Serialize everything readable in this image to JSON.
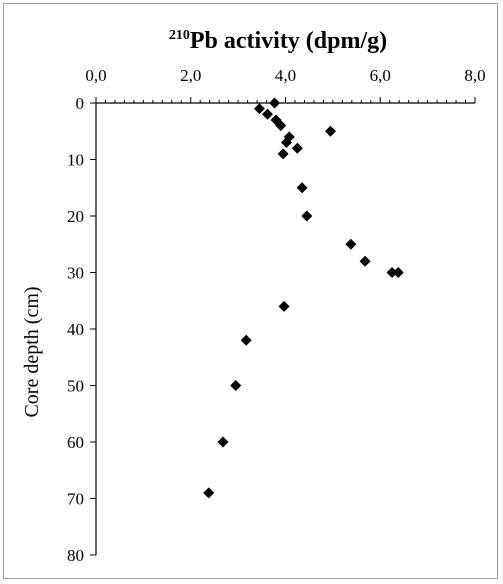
{
  "chart_data": {
    "type": "scatter",
    "title_sup": "210",
    "title_main": "Pb activity (dpm/g)",
    "xlabel": "210Pb activity (dpm/g)",
    "ylabel": "Core depth (cm)",
    "x_ticks": [
      "0,0",
      "2,0",
      "4,0",
      "6,0",
      "8,0"
    ],
    "y_ticks": [
      "0",
      "10",
      "20",
      "30",
      "40",
      "50",
      "60",
      "70",
      "80"
    ],
    "xlim": [
      0,
      8
    ],
    "ylim": [
      0,
      80
    ],
    "x_axis_position": "top",
    "y_axis_inverted": true,
    "grid": false,
    "legend": "none",
    "marker": "diamond",
    "marker_color": "#000000",
    "points": [
      {
        "x": 3.77,
        "y": 0
      },
      {
        "x": 3.45,
        "y": 1
      },
      {
        "x": 3.62,
        "y": 2
      },
      {
        "x": 3.8,
        "y": 3
      },
      {
        "x": 3.9,
        "y": 4
      },
      {
        "x": 4.95,
        "y": 5
      },
      {
        "x": 4.08,
        "y": 6
      },
      {
        "x": 4.02,
        "y": 7
      },
      {
        "x": 4.25,
        "y": 8
      },
      {
        "x": 3.95,
        "y": 9
      },
      {
        "x": 4.35,
        "y": 15
      },
      {
        "x": 4.45,
        "y": 20
      },
      {
        "x": 5.38,
        "y": 25
      },
      {
        "x": 5.68,
        "y": 28
      },
      {
        "x": 6.25,
        "y": 30
      },
      {
        "x": 6.38,
        "y": 30
      },
      {
        "x": 3.97,
        "y": 36
      },
      {
        "x": 3.17,
        "y": 42
      },
      {
        "x": 2.95,
        "y": 50
      },
      {
        "x": 2.68,
        "y": 60
      },
      {
        "x": 2.38,
        "y": 69
      }
    ]
  }
}
